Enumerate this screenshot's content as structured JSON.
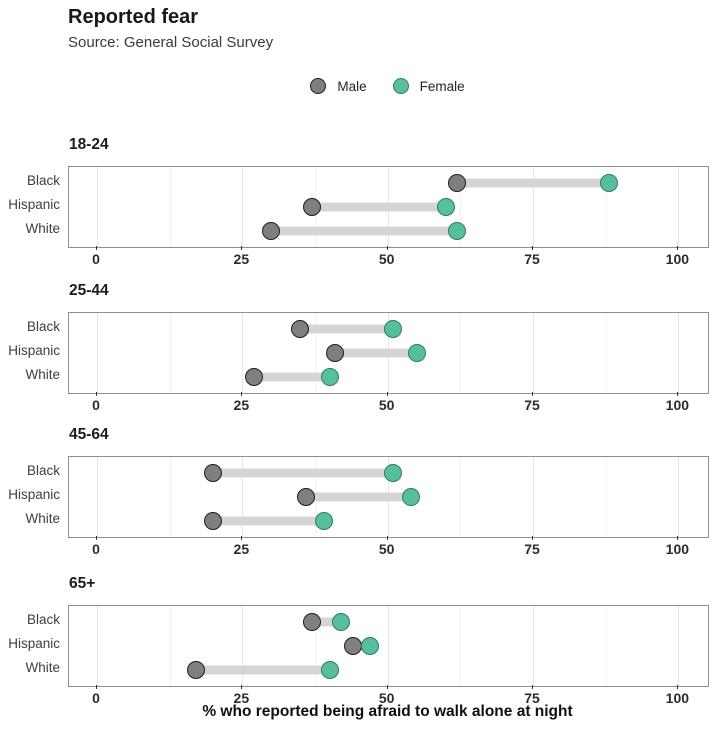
{
  "chart_data": {
    "type": "dumbbell",
    "title": "Reported fear",
    "subtitle": "Source: General Social Survey",
    "xlabel": "% who reported being afraid to walk alone at night",
    "x_domain": [
      -4.82,
      105.1
    ],
    "x_major_ticks": [
      0,
      25,
      50,
      75,
      100
    ],
    "x_tick_labels": [
      "0",
      "25",
      "50",
      "75",
      "100"
    ],
    "x_minor_ticks": [
      12.5,
      37.5,
      62.5,
      87.5
    ],
    "grid": "on",
    "legend_position": "top-center",
    "legend": [
      {
        "label": "Male",
        "color": "#7f7f7f"
      },
      {
        "label": "Female",
        "color": "#57bf9d"
      }
    ],
    "facets": [
      {
        "label": "18-24",
        "rows": [
          {
            "category": "Black",
            "male": 62,
            "female": 88
          },
          {
            "category": "Hispanic",
            "male": 37,
            "female": 60
          },
          {
            "category": "White",
            "male": 30,
            "female": 62
          }
        ]
      },
      {
        "label": "25-44",
        "rows": [
          {
            "category": "Black",
            "male": 35,
            "female": 51
          },
          {
            "category": "Hispanic",
            "male": 41,
            "female": 55
          },
          {
            "category": "White",
            "male": 27,
            "female": 40
          }
        ]
      },
      {
        "label": "45-64",
        "rows": [
          {
            "category": "Black",
            "male": 20,
            "female": 51
          },
          {
            "category": "Hispanic",
            "male": 36,
            "female": 54
          },
          {
            "category": "White",
            "male": 20,
            "female": 39
          }
        ]
      },
      {
        "label": "65+",
        "rows": [
          {
            "category": "Black",
            "male": 37,
            "female": 42
          },
          {
            "category": "Hispanic",
            "male": 44,
            "female": 47
          },
          {
            "category": "White",
            "male": 17,
            "female": 40
          }
        ]
      }
    ],
    "colors": {
      "male_fill": "#7f7f7f",
      "male_stroke": "#1e1e1e",
      "female_fill": "#57bf9d",
      "female_stroke": "#2d7c66",
      "segment": "#d5d5d5",
      "panel_border": "#8f8f8f",
      "grid_major": "#e6e6e6",
      "grid_minor": "#f2f2f2"
    }
  }
}
